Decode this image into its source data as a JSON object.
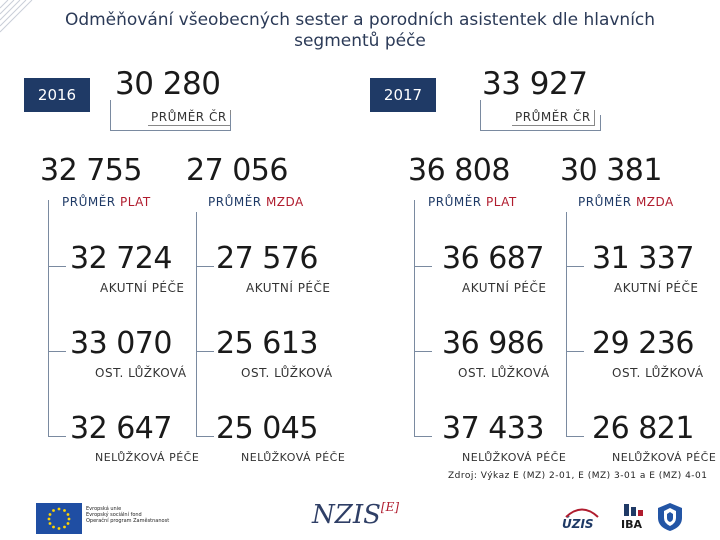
{
  "title": "Odměňování všeobecných sester a porodních asistentek dle hlavních segmentů péče",
  "colors": {
    "navy": "#1f3a66",
    "accent_red": "#b01c2e",
    "line": "#7a8aa0"
  },
  "years": [
    {
      "year": "2016",
      "total": "30 280",
      "total_label": "PRŮMĚR ČR",
      "plat": {
        "value": "32 755",
        "label_prefix": "PRŮMĚR ",
        "label_word": "PLAT"
      },
      "mzda": {
        "value": "27 056",
        "label_prefix": "PRŮMĚR ",
        "label_word": "MZDA"
      },
      "plat_segments": [
        {
          "value": "32 724",
          "label": "AKUTNÍ PÉČE"
        },
        {
          "value": "33 070",
          "label": "OST. LŮŽKOVÁ"
        },
        {
          "value": "32 647",
          "label": "NELŮŽKOVÁ PÉČE"
        }
      ],
      "mzda_segments": [
        {
          "value": "27 576",
          "label": "AKUTNÍ PÉČE"
        },
        {
          "value": "25 613",
          "label": "OST. LŮŽKOVÁ"
        },
        {
          "value": "25 045",
          "label": "NELŮŽKOVÁ PÉČE"
        }
      ]
    },
    {
      "year": "2017",
      "total": "33 927",
      "total_label": "PRŮMĚR ČR",
      "plat": {
        "value": "36 808",
        "label_prefix": "PRŮMĚR ",
        "label_word": "PLAT"
      },
      "mzda": {
        "value": "30 381",
        "label_prefix": "PRŮMĚR ",
        "label_word": "MZDA"
      },
      "plat_segments": [
        {
          "value": "36 687",
          "label": "AKUTNÍ PÉČE"
        },
        {
          "value": "36 986",
          "label": "OST. LŮŽKOVÁ"
        },
        {
          "value": "37 433",
          "label": "NELŮŽKOVÁ PÉČE"
        }
      ],
      "mzda_segments": [
        {
          "value": "31 337",
          "label": "AKUTNÍ PÉČE"
        },
        {
          "value": "29 236",
          "label": "OST. LŮŽKOVÁ"
        },
        {
          "value": "26 821",
          "label": "NELŮŽKOVÁ PÉČE"
        }
      ]
    }
  ],
  "source": "Zdroj: Výkaz E (MZ) 2-01, E (MZ) 3-01 a E (MZ) 4-01",
  "footer": {
    "eu_text_lines": [
      "Evropská unie",
      "Evropský sociální fond",
      "Operační program Zaměstnanost"
    ],
    "nzis_logo": "NZIS",
    "nzis_sup": "[E]",
    "uzis_logo": "ÚZIS",
    "iba_logo": "IBA"
  }
}
